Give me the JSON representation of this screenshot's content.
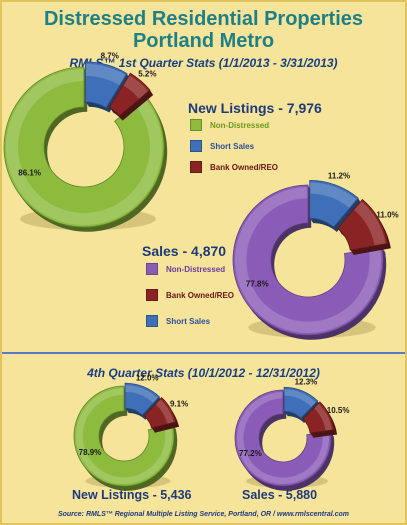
{
  "title_line1": "Distressed Residential Properties",
  "title_line2": "Portland Metro",
  "q1_subtitle": "RMLS™ 1st Quarter Stats (1/1/2013 - 3/31/2013)",
  "q4_subtitle": "4th Quarter Stats (10/1/2012 - 12/31/2012)",
  "source": "Source: RMLS™ Regional Multiple Listing Service, Portland, OR / www.rmlscentral.com",
  "colors": {
    "non_distressed_listings": "#8dbb3e",
    "non_distressed_sales": "#8a5cb8",
    "short_sales": "#3f6fb8",
    "bank_owned": "#8a2424",
    "title": "#1f7f87",
    "heading": "#1f3a7a"
  },
  "chart_data": [
    {
      "type": "donut",
      "title": "New Listings - 7,976",
      "period": "1st Quarter 2013",
      "slices": [
        {
          "label": "Non-Distressed",
          "value": 86.1,
          "display": "86.1%",
          "color": "#8dbb3e"
        },
        {
          "label": "Short Sales",
          "value": 8.7,
          "display": "8.7%",
          "color": "#3f6fb8"
        },
        {
          "label": "Bank Owned/REO",
          "value": 5.2,
          "display": "5.2%",
          "color": "#8a2424"
        }
      ],
      "legend": [
        {
          "label": "Non-Distressed",
          "color": "#8dbb3e"
        },
        {
          "label": "Short Sales",
          "color": "#3f6fb8"
        },
        {
          "label": "Bank Owned/REO",
          "color": "#8a2424"
        }
      ]
    },
    {
      "type": "donut",
      "title": "Sales - 4,870",
      "period": "1st Quarter 2013",
      "slices": [
        {
          "label": "Non-Distressed",
          "value": 77.8,
          "display": "77.8%",
          "color": "#8a5cb8"
        },
        {
          "label": "Short Sales",
          "value": 11.2,
          "display": "11.2%",
          "color": "#3f6fb8"
        },
        {
          "label": "Bank Owned/REO",
          "value": 11.0,
          "display": "11.0%",
          "color": "#8a2424"
        }
      ],
      "legend": [
        {
          "label": "Non-Distressed",
          "color": "#8a5cb8"
        },
        {
          "label": "Bank Owned/REO",
          "color": "#8a2424"
        },
        {
          "label": "Short Sales",
          "color": "#3f6fb8"
        }
      ]
    },
    {
      "type": "donut",
      "title": "New Listings - 5,436",
      "period": "4th Quarter 2012",
      "slices": [
        {
          "label": "Non-Distressed",
          "value": 78.9,
          "display": "78.9%",
          "color": "#8dbb3e"
        },
        {
          "label": "Short Sales",
          "value": 12.0,
          "display": "12.0%",
          "color": "#3f6fb8"
        },
        {
          "label": "Bank Owned/REO",
          "value": 9.1,
          "display": "9.1%",
          "color": "#8a2424"
        }
      ]
    },
    {
      "type": "donut",
      "title": "Sales - 5,880",
      "period": "4th Quarter 2012",
      "slices": [
        {
          "label": "Non-Distressed",
          "value": 77.2,
          "display": "77.2%",
          "color": "#8a5cb8"
        },
        {
          "label": "Short Sales",
          "value": 12.3,
          "display": "12.3%",
          "color": "#3f6fb8"
        },
        {
          "label": "Bank Owned/REO",
          "value": 10.5,
          "display": "10.5%",
          "color": "#8a2424"
        }
      ]
    }
  ]
}
